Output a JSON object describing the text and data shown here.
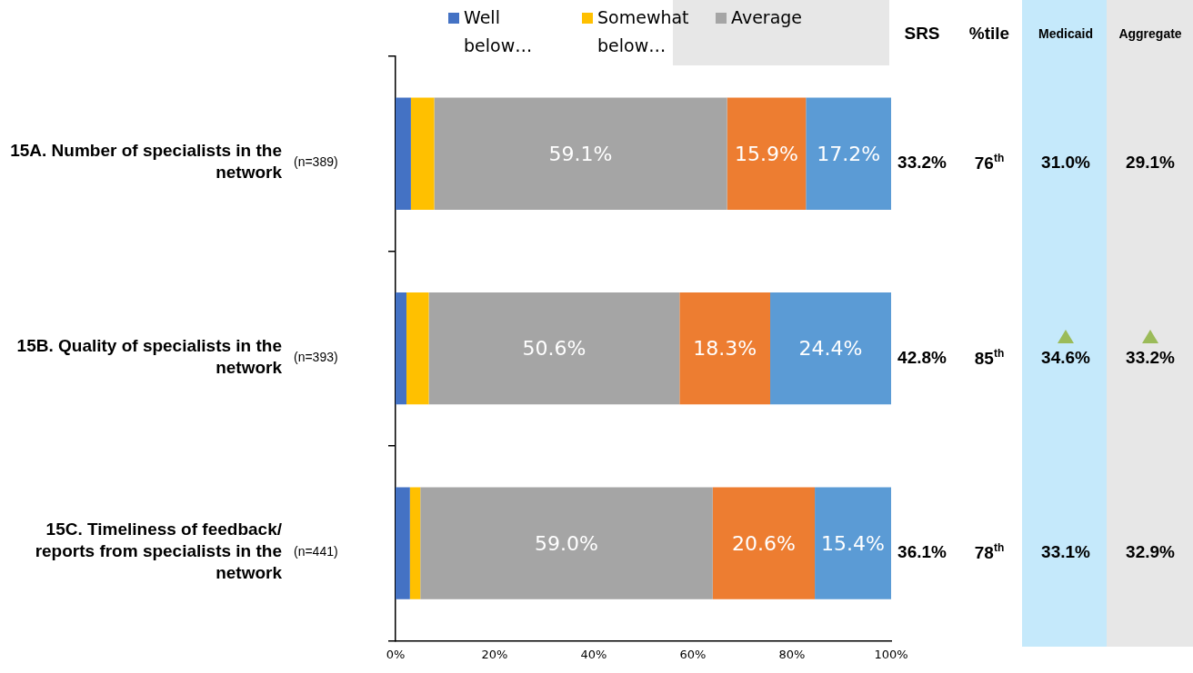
{
  "chart_data": {
    "type": "bar",
    "orientation": "horizontal",
    "stacked": true,
    "categories": [
      "15A. Number of specialists in the network",
      "15B. Quality of specialists in the network",
      "15C. Timeliness of feedback/ reports from specialists in the network"
    ],
    "series": [
      {
        "name": "Well below…",
        "color": "#4472c4",
        "values": [
          3.1,
          2.2,
          2.9
        ]
      },
      {
        "name": "Somewhat below…",
        "color": "#ffc000",
        "values": [
          4.7,
          4.5,
          2.1
        ]
      },
      {
        "name": "Average",
        "color": "#a5a5a5",
        "values": [
          59.1,
          50.6,
          59.0
        ],
        "value_labels": [
          "59.1%",
          "50.6%",
          "59.0%"
        ]
      },
      {
        "color": "#ed7d31",
        "values": [
          15.9,
          18.3,
          20.6
        ],
        "value_labels": [
          "15.9%",
          "18.3%",
          "20.6%"
        ]
      },
      {
        "color": "#5b9bd5",
        "values": [
          17.2,
          24.4,
          15.4
        ],
        "value_labels": [
          "17.2%",
          "24.4%",
          "15.4%"
        ]
      }
    ],
    "xlim": [
      0,
      100
    ],
    "xticks": [
      {
        "value": 0,
        "label": "0%"
      },
      {
        "value": 20,
        "label": "20%"
      },
      {
        "value": 40,
        "label": "40%"
      },
      {
        "value": 60,
        "label": "60%"
      },
      {
        "value": 80,
        "label": "80%"
      },
      {
        "value": 100,
        "label": "100%"
      }
    ],
    "grid": false,
    "legend": "top",
    "annotations": [
      "(n=389)",
      "(n=393)",
      "(n=441)",
      "SRS",
      "%tile",
      "Medicaid",
      "Aggregate",
      "33.2%",
      "76$^{th}$",
      "31.0%",
      "29.1%",
      "42.8%",
      "85$^{th}$",
      "34.6%",
      "33.2%",
      "36.1%",
      "78$^{th}$",
      "33.1%",
      "32.9%"
    ]
  }
}
